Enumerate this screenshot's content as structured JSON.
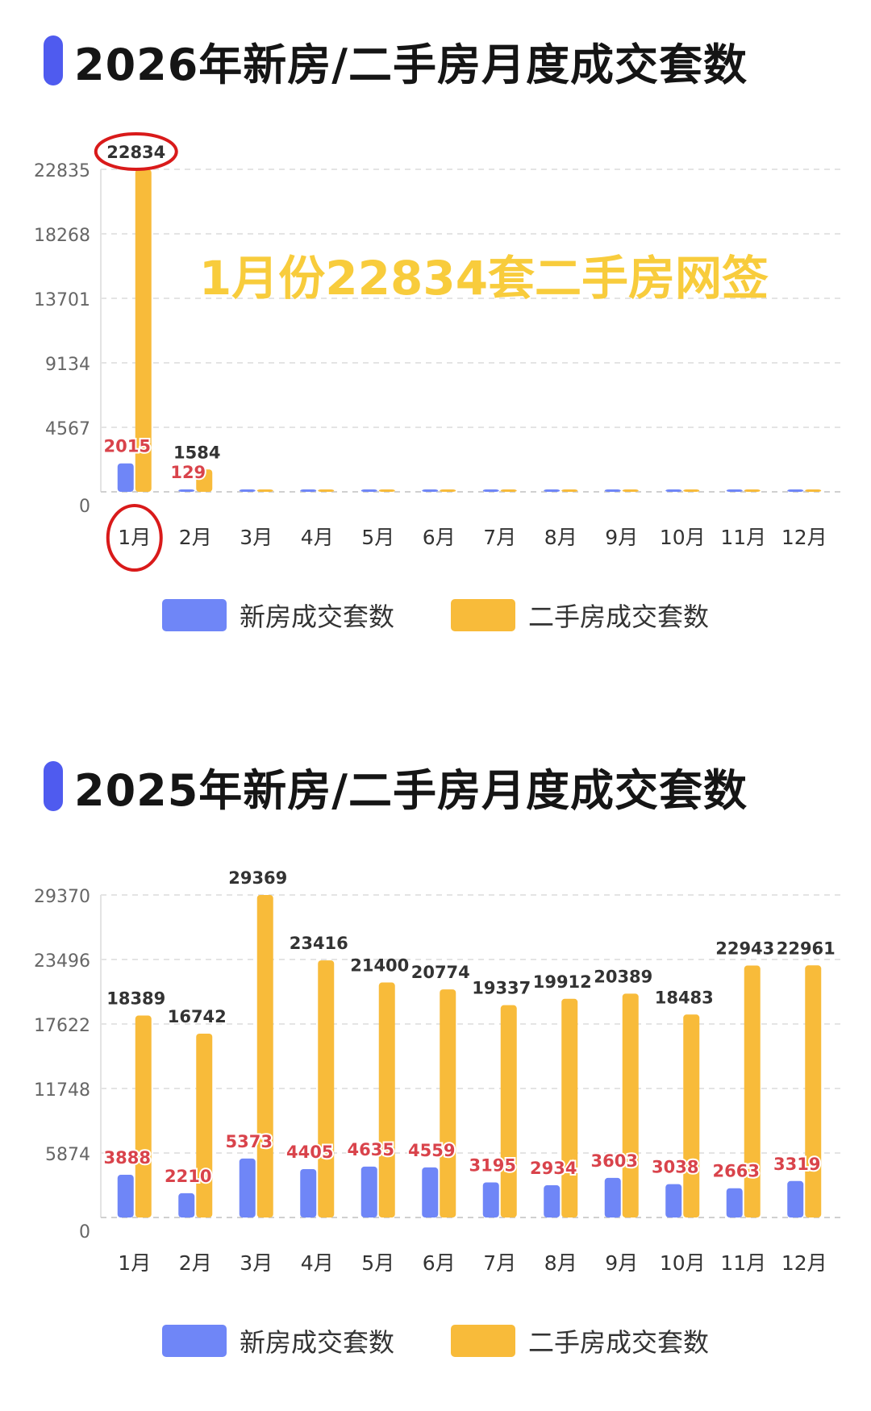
{
  "colors": {
    "new": "#6f86f7",
    "second": "#f8bb3a",
    "label_new": "#d9434b",
    "label_second": "#333333",
    "annotation": "#f8cc3c",
    "highlight": "#d91a1a",
    "accent": "#4f5bef"
  },
  "legend": {
    "new_label": "新房成交套数",
    "second_label": "二手房成交套数"
  },
  "chart_data": [
    {
      "type": "bar",
      "title": "2026年新房/二手房月度成交套数",
      "categories": [
        "1月",
        "2月",
        "3月",
        "4月",
        "5月",
        "6月",
        "7月",
        "8月",
        "9月",
        "10月",
        "11月",
        "12月"
      ],
      "yticks": [
        "0",
        "4567",
        "9134",
        "13701",
        "18268",
        "22835"
      ],
      "ylim": [
        0,
        22835
      ],
      "grid": true,
      "legend_position": "bottom",
      "annotation": "1月份22834套二手房网签",
      "highlighted": {
        "category_index": 0,
        "value_label": "22834"
      },
      "series": [
        {
          "name": "新房成交套数",
          "values": [
            2015,
            129,
            0,
            0,
            0,
            0,
            0,
            0,
            0,
            0,
            0,
            0
          ],
          "labels": [
            "2015",
            "129",
            "",
            "",
            "",
            "",
            "",
            "",
            "",
            "",
            "",
            ""
          ]
        },
        {
          "name": "二手房成交套数",
          "values": [
            22834,
            1584,
            0,
            0,
            0,
            0,
            0,
            0,
            0,
            0,
            0,
            0
          ],
          "labels": [
            "22834",
            "1584",
            "",
            "",
            "",
            "",
            "",
            "",
            "",
            "",
            "",
            ""
          ]
        }
      ]
    },
    {
      "type": "bar",
      "title": "2025年新房/二手房月度成交套数",
      "categories": [
        "1月",
        "2月",
        "3月",
        "4月",
        "5月",
        "6月",
        "7月",
        "8月",
        "9月",
        "10月",
        "11月",
        "12月"
      ],
      "yticks": [
        "0",
        "5874",
        "11748",
        "17622",
        "23496",
        "29370"
      ],
      "ylim": [
        0,
        29370
      ],
      "grid": true,
      "legend_position": "bottom",
      "series": [
        {
          "name": "新房成交套数",
          "values": [
            3888,
            2210,
            5373,
            4405,
            4635,
            4559,
            3195,
            2934,
            3603,
            3038,
            2663,
            3319
          ],
          "labels": [
            "3888",
            "2210",
            "5373",
            "4405",
            "4635",
            "4559",
            "3195",
            "2934",
            "3603",
            "3038",
            "2663",
            "3319"
          ]
        },
        {
          "name": "二手房成交套数",
          "values": [
            18389,
            16742,
            29369,
            23416,
            21400,
            20774,
            19337,
            19912,
            20389,
            18483,
            22943,
            22961
          ],
          "labels": [
            "18389",
            "16742",
            "29369",
            "23416",
            "21400",
            "20774",
            "19337",
            "19912",
            "20389",
            "18483",
            "22943",
            "22961"
          ]
        }
      ]
    }
  ]
}
